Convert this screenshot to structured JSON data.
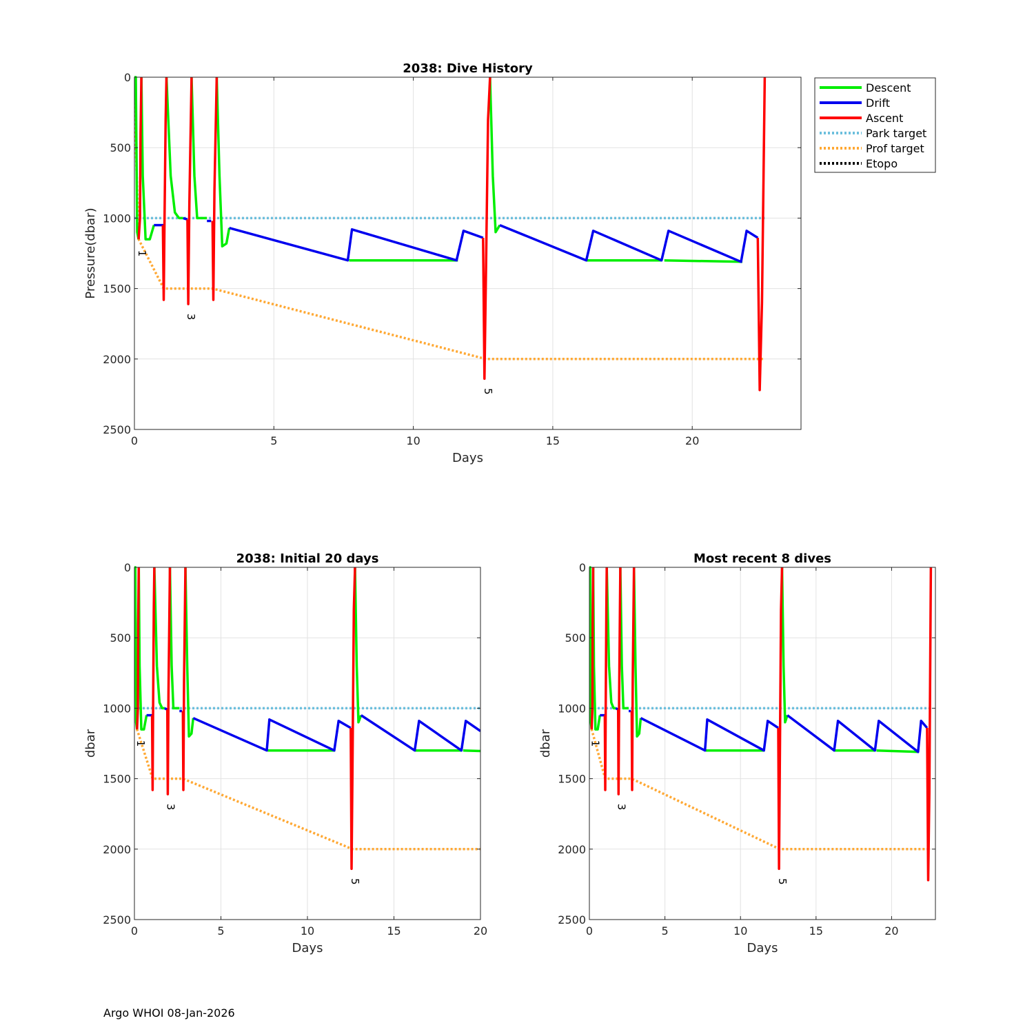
{
  "footer": "Argo WHOI 08-Jan-2026",
  "legend": {
    "entries": [
      {
        "label": "Descent",
        "color": "#00ee00",
        "style": "solid"
      },
      {
        "label": "Drift",
        "color": "#0000ee",
        "style": "solid"
      },
      {
        "label": "Ascent",
        "color": "#ff0000",
        "style": "solid"
      },
      {
        "label": "Park target",
        "color": "#6cbfdd",
        "style": "dotted"
      },
      {
        "label": "Prof target",
        "color": "#ffa833",
        "style": "dotted"
      },
      {
        "label": "Etopo",
        "color": "#000000",
        "style": "dotted"
      }
    ]
  },
  "chart_data": [
    {
      "id": "main",
      "type": "line",
      "title": "2038: Dive History",
      "xlabel": "Days",
      "ylabel": "Pressure(dbar)",
      "xlim": [
        0,
        23.9
      ],
      "ylim": [
        0,
        2500
      ],
      "y_reversed": true,
      "xticks": [
        0,
        5,
        10,
        15,
        20
      ],
      "yticks": [
        0,
        500,
        1000,
        1500,
        2000,
        2500
      ],
      "grid": true,
      "legend_position": "outside-top-right"
    },
    {
      "id": "initial",
      "type": "line",
      "title": "2038: Initial 20 days",
      "xlabel": "Days",
      "ylabel": "dbar",
      "xlim": [
        0,
        20
      ],
      "ylim": [
        0,
        2500
      ],
      "y_reversed": true,
      "xticks": [
        0,
        5,
        10,
        15,
        20
      ],
      "yticks": [
        0,
        500,
        1000,
        1500,
        2000,
        2500
      ],
      "grid": true
    },
    {
      "id": "recent",
      "type": "line",
      "title": "Most recent 8 dives",
      "xlabel": "Days",
      "ylabel": "dbar",
      "xlim": [
        0,
        22.9
      ],
      "ylim": [
        0,
        2500
      ],
      "y_reversed": true,
      "xticks": [
        0,
        5,
        10,
        15,
        20
      ],
      "yticks": [
        0,
        500,
        1000,
        1500,
        2000,
        2500
      ],
      "grid": true
    }
  ],
  "series": {
    "park_target": [
      [
        0,
        1000
      ],
      [
        22.6,
        1000
      ]
    ],
    "prof_target": [
      [
        0,
        150
      ],
      [
        0.15,
        1150
      ],
      [
        1.05,
        1500
      ],
      [
        2.8,
        1500
      ],
      [
        12.6,
        2000
      ],
      [
        22.6,
        2000
      ]
    ],
    "descent": [
      [
        [
          0,
          0
        ],
        [
          0.05,
          0
        ],
        [
          0.1,
          1100
        ],
        [
          0.15,
          1150
        ]
      ],
      [
        [
          0.25,
          0
        ],
        [
          0.3,
          700
        ],
        [
          0.4,
          1150
        ],
        [
          0.55,
          1150
        ],
        [
          0.7,
          1050
        ]
      ],
      [
        [
          1.15,
          0
        ],
        [
          1.3,
          700
        ],
        [
          1.45,
          960
        ],
        [
          1.6,
          1000
        ],
        [
          1.75,
          1000
        ]
      ],
      [
        [
          2.05,
          0
        ],
        [
          2.15,
          700
        ],
        [
          2.25,
          1000
        ],
        [
          2.6,
          1000
        ]
      ],
      [
        [
          2.95,
          0
        ],
        [
          3.05,
          700
        ],
        [
          3.15,
          1200
        ],
        [
          3.3,
          1180
        ],
        [
          3.4,
          1070
        ]
      ],
      [
        [
          7.7,
          1300
        ],
        [
          11.6,
          1300
        ]
      ],
      [
        [
          12.75,
          0
        ],
        [
          12.85,
          700
        ],
        [
          12.95,
          1100
        ],
        [
          13.1,
          1050
        ]
      ],
      [
        [
          16.2,
          1300
        ],
        [
          18.9,
          1300
        ]
      ],
      [
        [
          19.0,
          1300
        ],
        [
          21.8,
          1310
        ]
      ]
    ],
    "drift": [
      [
        [
          0.7,
          1050
        ],
        [
          1.05,
          1050
        ]
      ],
      [
        [
          1.75,
          1000
        ],
        [
          1.9,
          1010
        ]
      ],
      [
        [
          2.6,
          1020
        ],
        [
          2.75,
          1020
        ]
      ],
      [
        [
          3.4,
          1070
        ],
        [
          7.65,
          1300
        ],
        [
          7.8,
          1080
        ],
        [
          11.55,
          1300
        ],
        [
          11.8,
          1090
        ],
        [
          12.5,
          1140
        ]
      ],
      [
        [
          13.1,
          1050
        ],
        [
          16.2,
          1300
        ],
        [
          16.45,
          1090
        ],
        [
          18.9,
          1300
        ],
        [
          19.15,
          1090
        ],
        [
          21.75,
          1310
        ],
        [
          21.95,
          1090
        ],
        [
          22.35,
          1140
        ]
      ]
    ],
    "ascent": [
      [
        [
          0.15,
          1150
        ],
        [
          0.2,
          1000
        ],
        [
          0.22,
          400
        ],
        [
          0.25,
          0
        ]
      ],
      [
        [
          1.02,
          1050
        ],
        [
          1.05,
          1580
        ],
        [
          1.08,
          1000
        ],
        [
          1.12,
          300
        ],
        [
          1.15,
          0
        ]
      ],
      [
        [
          1.9,
          1010
        ],
        [
          1.93,
          1610
        ],
        [
          1.97,
          900
        ],
        [
          2.05,
          0
        ]
      ],
      [
        [
          2.8,
          1020
        ],
        [
          2.83,
          1580
        ],
        [
          2.87,
          800
        ],
        [
          2.95,
          0
        ]
      ],
      [
        [
          12.5,
          1140
        ],
        [
          12.55,
          2140
        ],
        [
          12.6,
          1450
        ],
        [
          12.68,
          300
        ],
        [
          12.75,
          0
        ]
      ],
      [
        [
          22.35,
          1140
        ],
        [
          22.42,
          2220
        ],
        [
          22.5,
          1600
        ],
        [
          22.6,
          0
        ]
      ]
    ],
    "profile_labels": [
      {
        "text": "1",
        "x": 0.15,
        "y": 1250
      },
      {
        "text": "3",
        "x": 1.9,
        "y": 1700
      },
      {
        "text": "5",
        "x": 12.55,
        "y": 2230
      }
    ]
  }
}
